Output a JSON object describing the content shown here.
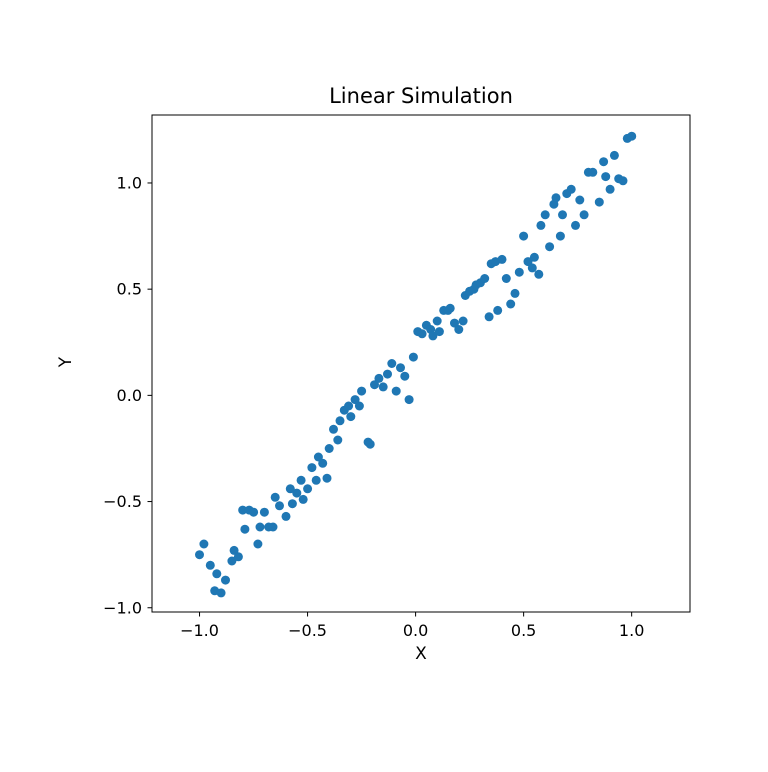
{
  "chart_data": {
    "type": "scatter",
    "title": "Linear Simulation",
    "xlabel": "X",
    "ylabel": "Y",
    "xlim": [
      -1.22,
      1.27
    ],
    "ylim": [
      -1.02,
      1.32
    ],
    "xticks": [
      -1.0,
      -0.5,
      0.0,
      0.5,
      1.0
    ],
    "xtick_labels": [
      "−1.0",
      "−0.5",
      "0.0",
      "0.5",
      "1.0"
    ],
    "yticks": [
      -1.0,
      -0.5,
      0.0,
      0.5,
      1.0
    ],
    "ytick_labels": [
      "−1.0",
      "−0.5",
      "0.0",
      "0.5",
      "1.0"
    ],
    "legend": null,
    "grid": false,
    "marker_color": "#1f77b4",
    "marker_radius_px": 4.5,
    "points": [
      [
        -1.0,
        -0.75
      ],
      [
        -0.98,
        -0.7
      ],
      [
        -0.95,
        -0.8
      ],
      [
        -0.93,
        -0.92
      ],
      [
        -0.92,
        -0.84
      ],
      [
        -0.9,
        -0.93
      ],
      [
        -0.88,
        -0.87
      ],
      [
        -0.85,
        -0.78
      ],
      [
        -0.84,
        -0.73
      ],
      [
        -0.82,
        -0.76
      ],
      [
        -0.8,
        -0.54
      ],
      [
        -0.79,
        -0.63
      ],
      [
        -0.77,
        -0.54
      ],
      [
        -0.75,
        -0.55
      ],
      [
        -0.73,
        -0.7
      ],
      [
        -0.72,
        -0.62
      ],
      [
        -0.7,
        -0.55
      ],
      [
        -0.68,
        -0.62
      ],
      [
        -0.66,
        -0.62
      ],
      [
        -0.65,
        -0.48
      ],
      [
        -0.63,
        -0.52
      ],
      [
        -0.6,
        -0.57
      ],
      [
        -0.58,
        -0.44
      ],
      [
        -0.57,
        -0.51
      ],
      [
        -0.55,
        -0.46
      ],
      [
        -0.53,
        -0.4
      ],
      [
        -0.52,
        -0.49
      ],
      [
        -0.5,
        -0.44
      ],
      [
        -0.48,
        -0.34
      ],
      [
        -0.46,
        -0.4
      ],
      [
        -0.45,
        -0.29
      ],
      [
        -0.43,
        -0.32
      ],
      [
        -0.41,
        -0.39
      ],
      [
        -0.4,
        -0.25
      ],
      [
        -0.38,
        -0.16
      ],
      [
        -0.36,
        -0.21
      ],
      [
        -0.35,
        -0.12
      ],
      [
        -0.33,
        -0.07
      ],
      [
        -0.31,
        -0.05
      ],
      [
        -0.3,
        -0.1
      ],
      [
        -0.28,
        -0.02
      ],
      [
        -0.26,
        -0.05
      ],
      [
        -0.25,
        0.02
      ],
      [
        -0.22,
        -0.22
      ],
      [
        -0.21,
        -0.23
      ],
      [
        -0.19,
        0.05
      ],
      [
        -0.17,
        0.08
      ],
      [
        -0.15,
        0.04
      ],
      [
        -0.13,
        0.1
      ],
      [
        -0.11,
        0.15
      ],
      [
        -0.09,
        0.02
      ],
      [
        -0.07,
        0.13
      ],
      [
        -0.05,
        0.09
      ],
      [
        -0.03,
        -0.02
      ],
      [
        -0.01,
        0.18
      ],
      [
        0.01,
        0.3
      ],
      [
        0.03,
        0.29
      ],
      [
        0.05,
        0.33
      ],
      [
        0.07,
        0.31
      ],
      [
        0.08,
        0.28
      ],
      [
        0.1,
        0.35
      ],
      [
        0.11,
        0.3
      ],
      [
        0.13,
        0.4
      ],
      [
        0.15,
        0.4
      ],
      [
        0.16,
        0.41
      ],
      [
        0.18,
        0.34
      ],
      [
        0.2,
        0.31
      ],
      [
        0.22,
        0.35
      ],
      [
        0.23,
        0.47
      ],
      [
        0.25,
        0.49
      ],
      [
        0.27,
        0.5
      ],
      [
        0.28,
        0.52
      ],
      [
        0.3,
        0.53
      ],
      [
        0.32,
        0.55
      ],
      [
        0.34,
        0.37
      ],
      [
        0.35,
        0.62
      ],
      [
        0.37,
        0.63
      ],
      [
        0.38,
        0.4
      ],
      [
        0.4,
        0.64
      ],
      [
        0.42,
        0.55
      ],
      [
        0.44,
        0.43
      ],
      [
        0.46,
        0.48
      ],
      [
        0.48,
        0.58
      ],
      [
        0.5,
        0.75
      ],
      [
        0.52,
        0.63
      ],
      [
        0.54,
        0.6
      ],
      [
        0.55,
        0.65
      ],
      [
        0.57,
        0.57
      ],
      [
        0.58,
        0.8
      ],
      [
        0.6,
        0.85
      ],
      [
        0.62,
        0.7
      ],
      [
        0.64,
        0.9
      ],
      [
        0.65,
        0.93
      ],
      [
        0.67,
        0.75
      ],
      [
        0.68,
        0.85
      ],
      [
        0.7,
        0.95
      ],
      [
        0.72,
        0.97
      ],
      [
        0.74,
        0.8
      ],
      [
        0.76,
        0.92
      ],
      [
        0.78,
        0.85
      ],
      [
        0.8,
        1.05
      ],
      [
        0.82,
        1.05
      ],
      [
        0.85,
        0.91
      ],
      [
        0.87,
        1.1
      ],
      [
        0.88,
        1.03
      ],
      [
        0.9,
        0.97
      ],
      [
        0.92,
        1.13
      ],
      [
        0.94,
        1.02
      ],
      [
        0.96,
        1.01
      ],
      [
        0.98,
        1.21
      ],
      [
        1.0,
        1.22
      ]
    ]
  }
}
